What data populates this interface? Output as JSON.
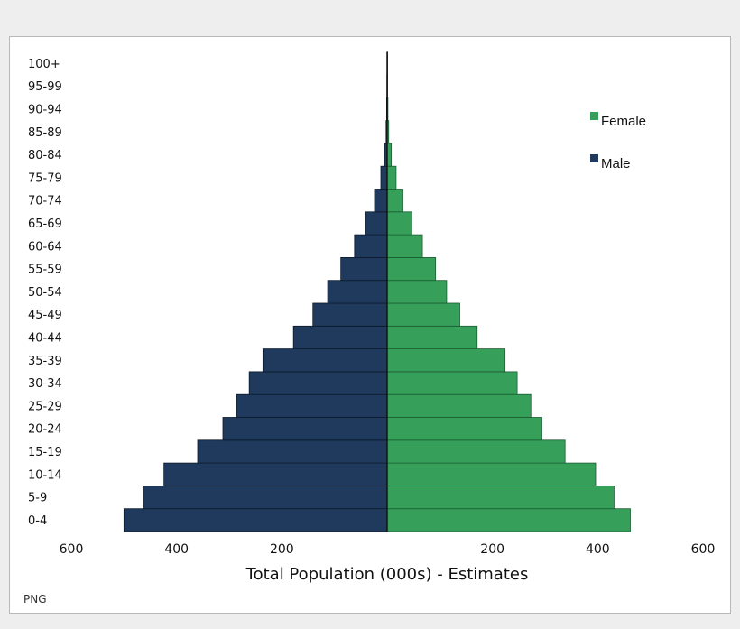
{
  "chart_data": {
    "type": "bar",
    "orientation": "horizontal-diverging",
    "categories": [
      "0-4",
      "5-9",
      "10-14",
      "15-19",
      "20-24",
      "25-29",
      "30-34",
      "35-39",
      "40-44",
      "45-49",
      "50-54",
      "55-59",
      "60-64",
      "65-69",
      "70-74",
      "75-79",
      "80-84",
      "85-89",
      "90-94",
      "95-99",
      "100+"
    ],
    "series": [
      {
        "name": "Male",
        "color": "#1f3a5c",
        "values": [
          500,
          462,
          424,
          360,
          312,
          286,
          262,
          236,
          178,
          141,
          113,
          88,
          62,
          41,
          24,
          12,
          5,
          2,
          1,
          0.5,
          0.3
        ]
      },
      {
        "name": "Female",
        "color": "#36a05b",
        "values": [
          462,
          431,
          396,
          338,
          294,
          273,
          247,
          224,
          171,
          138,
          113,
          92,
          67,
          47,
          30,
          17,
          8,
          3,
          1.5,
          0.6,
          0.3
        ]
      }
    ],
    "xlabel": "Total Population (000s) - Estimates",
    "ticks": [
      {
        "value": -600,
        "label": "600"
      },
      {
        "value": -400,
        "label": "400"
      },
      {
        "value": -200,
        "label": "200"
      },
      {
        "value": 200,
        "label": "200"
      },
      {
        "value": 400,
        "label": "400"
      },
      {
        "value": 600,
        "label": "600"
      }
    ],
    "xlim": [
      -600,
      600
    ],
    "legend": {
      "placement": "top-right",
      "order": [
        "Female",
        "Male"
      ]
    },
    "grid": false
  },
  "watermark": "PNG"
}
